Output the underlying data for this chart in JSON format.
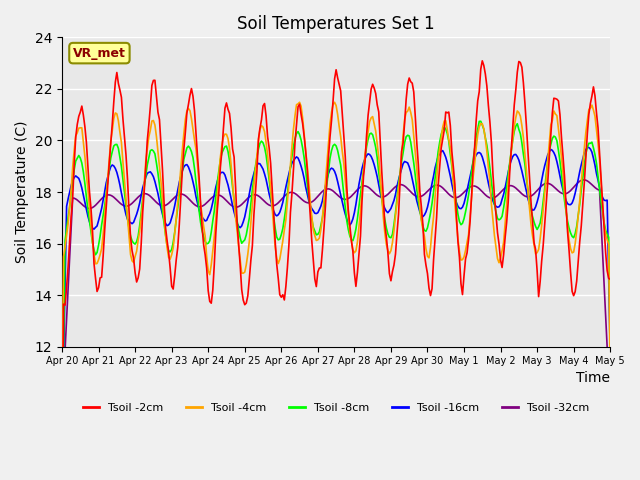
{
  "title": "Soil Temperatures Set 1",
  "xlabel": "Time",
  "ylabel": "Soil Temperature (C)",
  "ylim": [
    12,
    24
  ],
  "yticks": [
    12,
    14,
    16,
    18,
    20,
    22,
    24
  ],
  "legend_labels": [
    "Tsoil -2cm",
    "Tsoil -4cm",
    "Tsoil -8cm",
    "Tsoil -16cm",
    "Tsoil -32cm"
  ],
  "colors": [
    "red",
    "orange",
    "lime",
    "blue",
    "purple"
  ],
  "bg_color": "#e8e8e8",
  "annotation_text": "VR_met",
  "annotation_color": "#8B0000",
  "annotation_bg": "#ffff99",
  "x_tick_labels": [
    "Apr 20",
    "Apr 21",
    "Apr 22",
    "Apr 23",
    "Apr 24",
    "Apr 25",
    "Apr 26",
    "Apr 27",
    "Apr 28",
    "Apr 29",
    "Apr 30",
    "May 1",
    "May 2",
    "May 3",
    "May 4",
    "May 5"
  ],
  "n_points": 361
}
